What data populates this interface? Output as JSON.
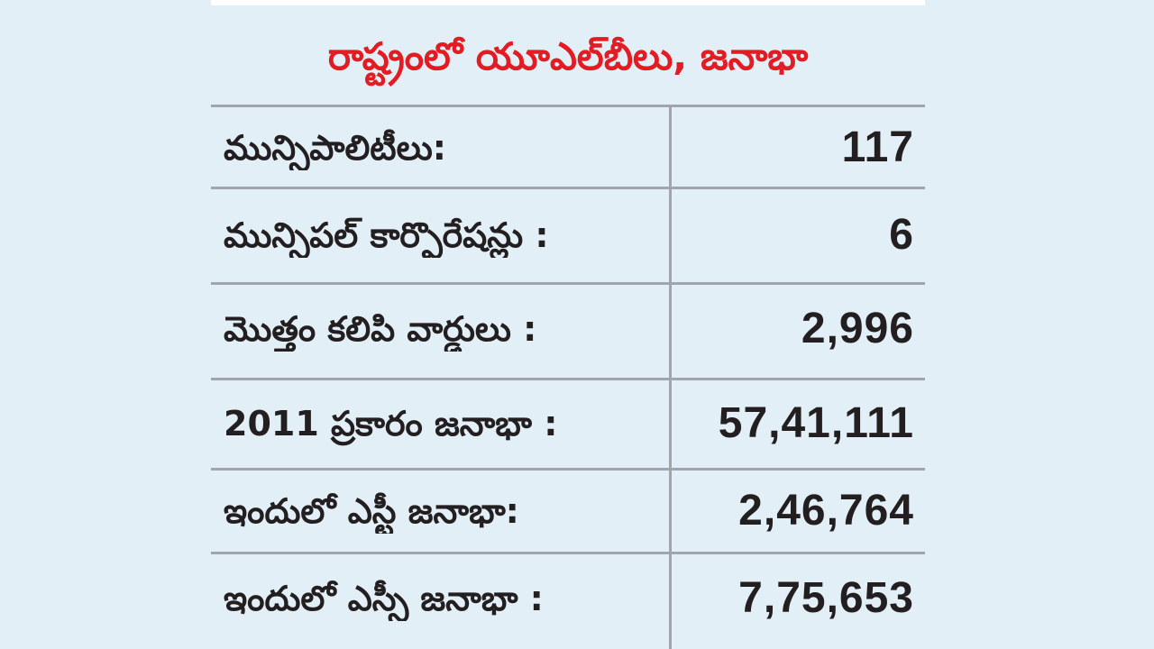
{
  "title": "రాష్ట్రంలో యూఎల్‌బీలు, జనాభా",
  "rows": [
    {
      "label": "మున్సిపాలిటీలు:",
      "value": "117"
    },
    {
      "label": "మున్సిపల్‌ కార్పొరేషన్లు :",
      "value": "6"
    },
    {
      "label": "మొత్తం కలిపి వార్డులు :",
      "value": "2,996"
    },
    {
      "label": "2011 ప్రకారం జనాభా :",
      "value": "57,41,111"
    },
    {
      "label": "ఇందులో ఎస్టీ జనాభా:",
      "value": "2,46,764"
    },
    {
      "label": "ఇందులో ఎస్సీ జనాభా :",
      "value": "7,75,653"
    }
  ],
  "colors": {
    "background": "#e2eff7",
    "title": "#e31b23",
    "text": "#231f20",
    "rule": "#9fa5aa"
  }
}
